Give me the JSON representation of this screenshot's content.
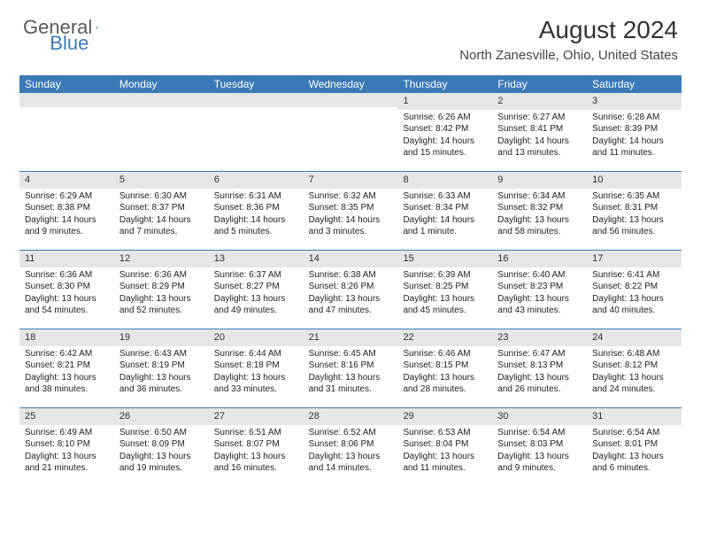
{
  "brand": {
    "part1": "General",
    "part2": "Blue"
  },
  "title": "August 2024",
  "location": "North Zanesville, Ohio, United States",
  "colors": {
    "header_bg": "#3a7ab8",
    "header_text": "#ffffff",
    "daynum_bg": "#e6e6e6",
    "border": "#3a7ab8",
    "text": "#222222",
    "page_bg": "#ffffff"
  },
  "font": {
    "body_size": 10,
    "header_size": 12,
    "title_size": 28,
    "location_size": 15
  },
  "day_headers": [
    "Sunday",
    "Monday",
    "Tuesday",
    "Wednesday",
    "Thursday",
    "Friday",
    "Saturday"
  ],
  "weeks": [
    [
      {
        "day": "",
        "sunrise": "",
        "sunset": "",
        "daylight": ""
      },
      {
        "day": "",
        "sunrise": "",
        "sunset": "",
        "daylight": ""
      },
      {
        "day": "",
        "sunrise": "",
        "sunset": "",
        "daylight": ""
      },
      {
        "day": "",
        "sunrise": "",
        "sunset": "",
        "daylight": ""
      },
      {
        "day": "1",
        "sunrise": "Sunrise: 6:26 AM",
        "sunset": "Sunset: 8:42 PM",
        "daylight": "Daylight: 14 hours and 15 minutes."
      },
      {
        "day": "2",
        "sunrise": "Sunrise: 6:27 AM",
        "sunset": "Sunset: 8:41 PM",
        "daylight": "Daylight: 14 hours and 13 minutes."
      },
      {
        "day": "3",
        "sunrise": "Sunrise: 6:28 AM",
        "sunset": "Sunset: 8:39 PM",
        "daylight": "Daylight: 14 hours and 11 minutes."
      }
    ],
    [
      {
        "day": "4",
        "sunrise": "Sunrise: 6:29 AM",
        "sunset": "Sunset: 8:38 PM",
        "daylight": "Daylight: 14 hours and 9 minutes."
      },
      {
        "day": "5",
        "sunrise": "Sunrise: 6:30 AM",
        "sunset": "Sunset: 8:37 PM",
        "daylight": "Daylight: 14 hours and 7 minutes."
      },
      {
        "day": "6",
        "sunrise": "Sunrise: 6:31 AM",
        "sunset": "Sunset: 8:36 PM",
        "daylight": "Daylight: 14 hours and 5 minutes."
      },
      {
        "day": "7",
        "sunrise": "Sunrise: 6:32 AM",
        "sunset": "Sunset: 8:35 PM",
        "daylight": "Daylight: 14 hours and 3 minutes."
      },
      {
        "day": "8",
        "sunrise": "Sunrise: 6:33 AM",
        "sunset": "Sunset: 8:34 PM",
        "daylight": "Daylight: 14 hours and 1 minute."
      },
      {
        "day": "9",
        "sunrise": "Sunrise: 6:34 AM",
        "sunset": "Sunset: 8:32 PM",
        "daylight": "Daylight: 13 hours and 58 minutes."
      },
      {
        "day": "10",
        "sunrise": "Sunrise: 6:35 AM",
        "sunset": "Sunset: 8:31 PM",
        "daylight": "Daylight: 13 hours and 56 minutes."
      }
    ],
    [
      {
        "day": "11",
        "sunrise": "Sunrise: 6:36 AM",
        "sunset": "Sunset: 8:30 PM",
        "daylight": "Daylight: 13 hours and 54 minutes."
      },
      {
        "day": "12",
        "sunrise": "Sunrise: 6:36 AM",
        "sunset": "Sunset: 8:29 PM",
        "daylight": "Daylight: 13 hours and 52 minutes."
      },
      {
        "day": "13",
        "sunrise": "Sunrise: 6:37 AM",
        "sunset": "Sunset: 8:27 PM",
        "daylight": "Daylight: 13 hours and 49 minutes."
      },
      {
        "day": "14",
        "sunrise": "Sunrise: 6:38 AM",
        "sunset": "Sunset: 8:26 PM",
        "daylight": "Daylight: 13 hours and 47 minutes."
      },
      {
        "day": "15",
        "sunrise": "Sunrise: 6:39 AM",
        "sunset": "Sunset: 8:25 PM",
        "daylight": "Daylight: 13 hours and 45 minutes."
      },
      {
        "day": "16",
        "sunrise": "Sunrise: 6:40 AM",
        "sunset": "Sunset: 8:23 PM",
        "daylight": "Daylight: 13 hours and 43 minutes."
      },
      {
        "day": "17",
        "sunrise": "Sunrise: 6:41 AM",
        "sunset": "Sunset: 8:22 PM",
        "daylight": "Daylight: 13 hours and 40 minutes."
      }
    ],
    [
      {
        "day": "18",
        "sunrise": "Sunrise: 6:42 AM",
        "sunset": "Sunset: 8:21 PM",
        "daylight": "Daylight: 13 hours and 38 minutes."
      },
      {
        "day": "19",
        "sunrise": "Sunrise: 6:43 AM",
        "sunset": "Sunset: 8:19 PM",
        "daylight": "Daylight: 13 hours and 36 minutes."
      },
      {
        "day": "20",
        "sunrise": "Sunrise: 6:44 AM",
        "sunset": "Sunset: 8:18 PM",
        "daylight": "Daylight: 13 hours and 33 minutes."
      },
      {
        "day": "21",
        "sunrise": "Sunrise: 6:45 AM",
        "sunset": "Sunset: 8:16 PM",
        "daylight": "Daylight: 13 hours and 31 minutes."
      },
      {
        "day": "22",
        "sunrise": "Sunrise: 6:46 AM",
        "sunset": "Sunset: 8:15 PM",
        "daylight": "Daylight: 13 hours and 28 minutes."
      },
      {
        "day": "23",
        "sunrise": "Sunrise: 6:47 AM",
        "sunset": "Sunset: 8:13 PM",
        "daylight": "Daylight: 13 hours and 26 minutes."
      },
      {
        "day": "24",
        "sunrise": "Sunrise: 6:48 AM",
        "sunset": "Sunset: 8:12 PM",
        "daylight": "Daylight: 13 hours and 24 minutes."
      }
    ],
    [
      {
        "day": "25",
        "sunrise": "Sunrise: 6:49 AM",
        "sunset": "Sunset: 8:10 PM",
        "daylight": "Daylight: 13 hours and 21 minutes."
      },
      {
        "day": "26",
        "sunrise": "Sunrise: 6:50 AM",
        "sunset": "Sunset: 8:09 PM",
        "daylight": "Daylight: 13 hours and 19 minutes."
      },
      {
        "day": "27",
        "sunrise": "Sunrise: 6:51 AM",
        "sunset": "Sunset: 8:07 PM",
        "daylight": "Daylight: 13 hours and 16 minutes."
      },
      {
        "day": "28",
        "sunrise": "Sunrise: 6:52 AM",
        "sunset": "Sunset: 8:06 PM",
        "daylight": "Daylight: 13 hours and 14 minutes."
      },
      {
        "day": "29",
        "sunrise": "Sunrise: 6:53 AM",
        "sunset": "Sunset: 8:04 PM",
        "daylight": "Daylight: 13 hours and 11 minutes."
      },
      {
        "day": "30",
        "sunrise": "Sunrise: 6:54 AM",
        "sunset": "Sunset: 8:03 PM",
        "daylight": "Daylight: 13 hours and 9 minutes."
      },
      {
        "day": "31",
        "sunrise": "Sunrise: 6:54 AM",
        "sunset": "Sunset: 8:01 PM",
        "daylight": "Daylight: 13 hours and 6 minutes."
      }
    ]
  ]
}
